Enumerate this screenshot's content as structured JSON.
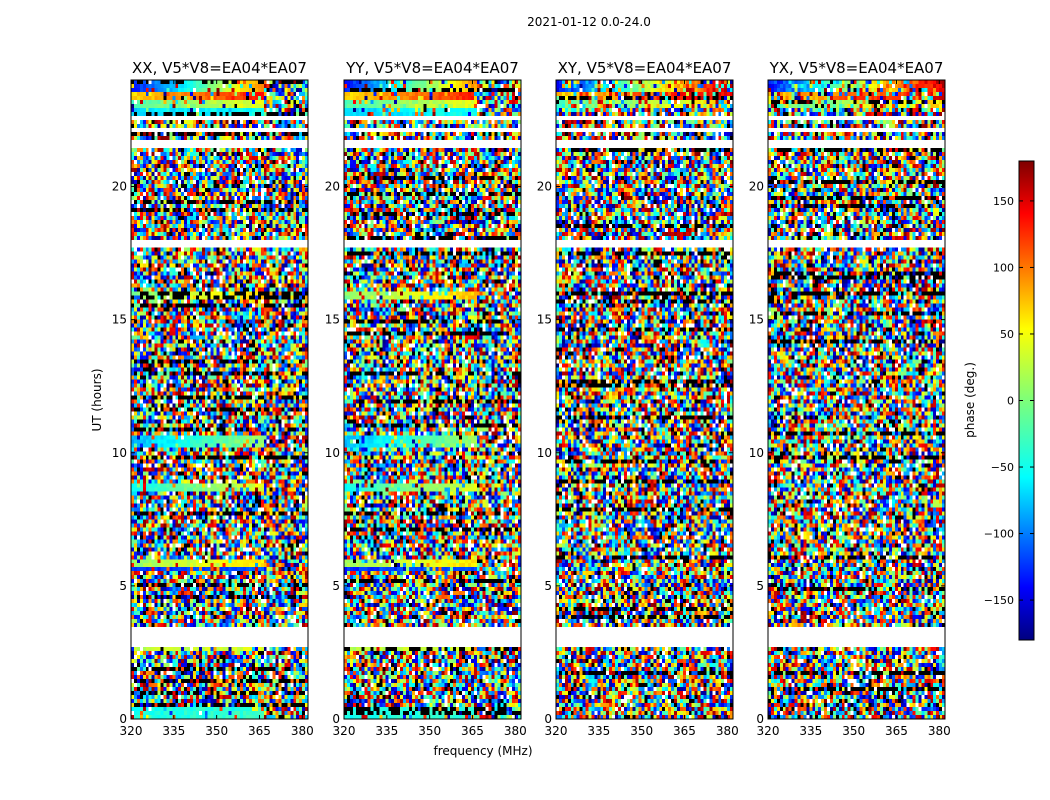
{
  "chart_data": {
    "type": "heatmap",
    "suptitle": "2021-01-12 0.0-24.0",
    "xlabel": "frequency (MHz)",
    "ylabel": "UT (hours)",
    "xlim": [
      320,
      382
    ],
    "ylim": [
      0,
      24
    ],
    "xticks": [
      320,
      335,
      350,
      365,
      380
    ],
    "yticks": [
      0,
      5,
      10,
      15,
      20
    ],
    "panels": [
      {
        "polarization": "XX",
        "title": "XX, V5*V8=EA04*EA07"
      },
      {
        "polarization": "YY",
        "title": "YY, V5*V8=EA04*EA07"
      },
      {
        "polarization": "XY",
        "title": "XY, V5*V8=EA04*EA07"
      },
      {
        "polarization": "YX",
        "title": "YX, V5*V8=EA04*EA07"
      }
    ],
    "colorbar": {
      "label": "phase (deg.)",
      "range": [
        -180,
        180
      ],
      "ticks": [
        -150,
        -100,
        -50,
        0,
        50,
        100,
        150
      ],
      "colormap": "jet"
    },
    "flagged_time_ranges_hours": [
      [
        2.75,
        3.4
      ],
      [
        17.65,
        18.0
      ],
      [
        21.5,
        21.75
      ],
      [
        22.1,
        22.25
      ],
      [
        22.5,
        22.6
      ]
    ],
    "coherent_phase_bands": [
      {
        "t_start": 0.0,
        "t_end": 0.4,
        "phase_start": -40,
        "phase_end": -20
      },
      {
        "t_start": 2.5,
        "t_end": 2.7,
        "phase_start": 20,
        "phase_end": 40
      },
      {
        "t_start": 5.5,
        "t_end": 5.65,
        "phase_start": -120,
        "phase_end": -100
      },
      {
        "t_start": 5.75,
        "t_end": 6.05,
        "phase_start": 10,
        "phase_end": 70
      },
      {
        "t_start": 8.6,
        "t_end": 8.9,
        "phase_start": -40,
        "phase_end": 60
      },
      {
        "t_start": 10.2,
        "t_end": 10.6,
        "phase_start": -70,
        "phase_end": 40
      },
      {
        "t_start": 15.8,
        "t_end": 16.0,
        "phase_start": 0,
        "phase_end": 90
      },
      {
        "t_start": 22.6,
        "t_end": 22.9,
        "phase_start": -60,
        "phase_end": -30
      },
      {
        "t_start": 23.0,
        "t_end": 23.3,
        "phase_start": -20,
        "phase_end": 60
      },
      {
        "t_start": 23.3,
        "t_end": 23.6,
        "phase_start": 60,
        "phase_end": 150
      },
      {
        "t_start": 23.6,
        "t_end": 24.0,
        "phase_start": -130,
        "phase_end": 160
      }
    ]
  }
}
